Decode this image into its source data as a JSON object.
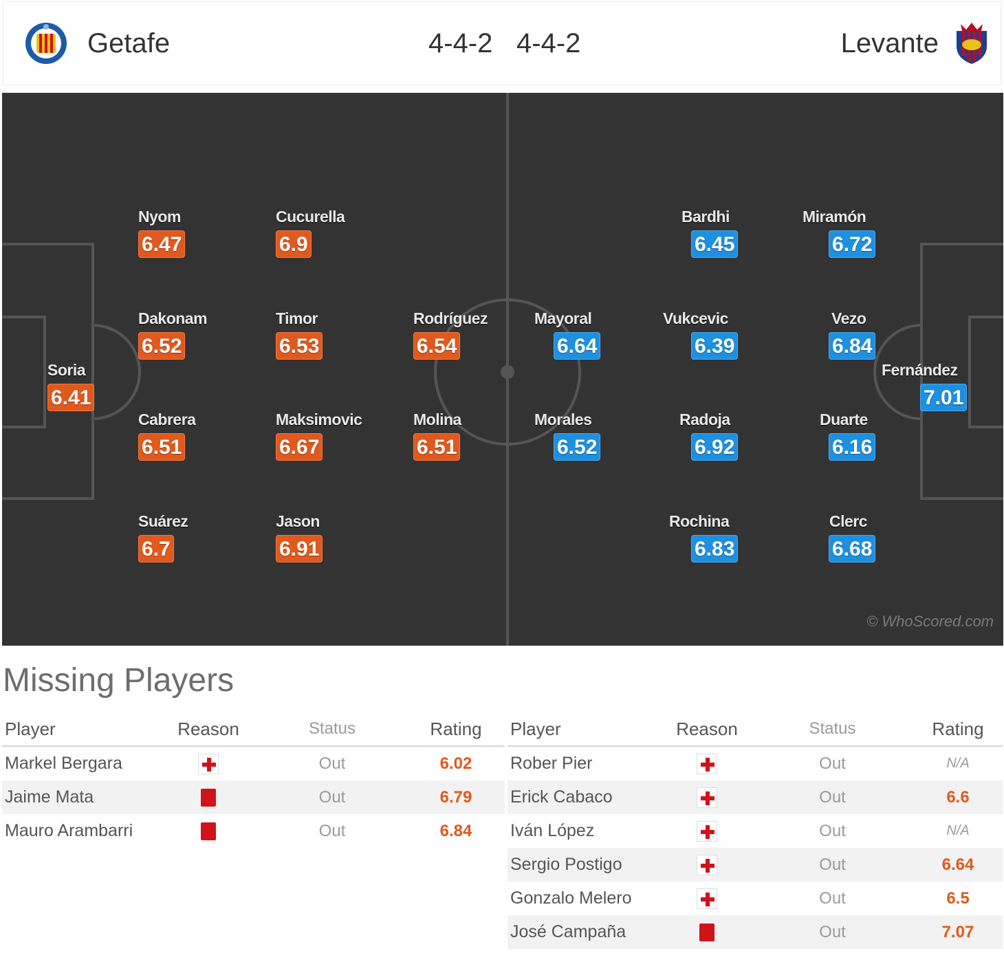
{
  "header": {
    "home": {
      "name": "Getafe",
      "formation": "4-4-2",
      "crest": "getafe-crest"
    },
    "away": {
      "name": "Levante",
      "formation": "4-4-2",
      "crest": "levante-crest"
    }
  },
  "pitch": {
    "watermark": "© WhoScored.com",
    "home_players": [
      {
        "name": "Soria",
        "rating": "6.41"
      },
      {
        "name": "Nyom",
        "rating": "6.47"
      },
      {
        "name": "Dakonam",
        "rating": "6.52"
      },
      {
        "name": "Cabrera",
        "rating": "6.51"
      },
      {
        "name": "Suárez",
        "rating": "6.7"
      },
      {
        "name": "Cucurella",
        "rating": "6.9"
      },
      {
        "name": "Timor",
        "rating": "6.53"
      },
      {
        "name": "Maksimovic",
        "rating": "6.67"
      },
      {
        "name": "Jason",
        "rating": "6.91"
      },
      {
        "name": "Rodríguez",
        "rating": "6.54"
      },
      {
        "name": "Molina",
        "rating": "6.51"
      }
    ],
    "away_players": [
      {
        "name": "Mayoral",
        "rating": "6.64"
      },
      {
        "name": "Morales",
        "rating": "6.52"
      },
      {
        "name": "Bardhi",
        "rating": "6.45"
      },
      {
        "name": "Vukcevic",
        "rating": "6.39"
      },
      {
        "name": "Radoja",
        "rating": "6.92"
      },
      {
        "name": "Rochina",
        "rating": "6.83"
      },
      {
        "name": "Miramón",
        "rating": "6.72"
      },
      {
        "name": "Vezo",
        "rating": "6.84"
      },
      {
        "name": "Duarte",
        "rating": "6.16"
      },
      {
        "name": "Clerc",
        "rating": "6.68"
      },
      {
        "name": "Fernández",
        "rating": "7.01"
      }
    ]
  },
  "missing": {
    "title": "Missing Players",
    "columns": [
      "Player",
      "Reason",
      "Status",
      "Rating"
    ],
    "home": [
      {
        "player": "Markel Bergara",
        "reason": "injury-icon",
        "status": "Out",
        "rating": "6.02"
      },
      {
        "player": "Jaime Mata",
        "reason": "red-card-icon",
        "status": "Out",
        "rating": "6.79"
      },
      {
        "player": "Mauro Arambarri",
        "reason": "red-card-icon",
        "status": "Out",
        "rating": "6.84"
      }
    ],
    "away": [
      {
        "player": "Rober Pier",
        "reason": "injury-icon",
        "status": "Out",
        "rating": "N/A"
      },
      {
        "player": "Erick Cabaco",
        "reason": "injury-icon",
        "status": "Out",
        "rating": "6.6"
      },
      {
        "player": "Iván López",
        "reason": "injury-icon",
        "status": "Out",
        "rating": "N/A"
      },
      {
        "player": "Sergio Postigo",
        "reason": "injury-icon",
        "status": "Out",
        "rating": "6.64"
      },
      {
        "player": "Gonzalo Melero",
        "reason": "injury-icon",
        "status": "Out",
        "rating": "6.5"
      },
      {
        "player": "José Campaña",
        "reason": "red-card-icon",
        "status": "Out",
        "rating": "7.07"
      }
    ]
  },
  "colors": {
    "pitch": "#333333",
    "home_rating": "#e1591c",
    "away_rating": "#1e90e0",
    "reason_red": "#d0121b"
  }
}
